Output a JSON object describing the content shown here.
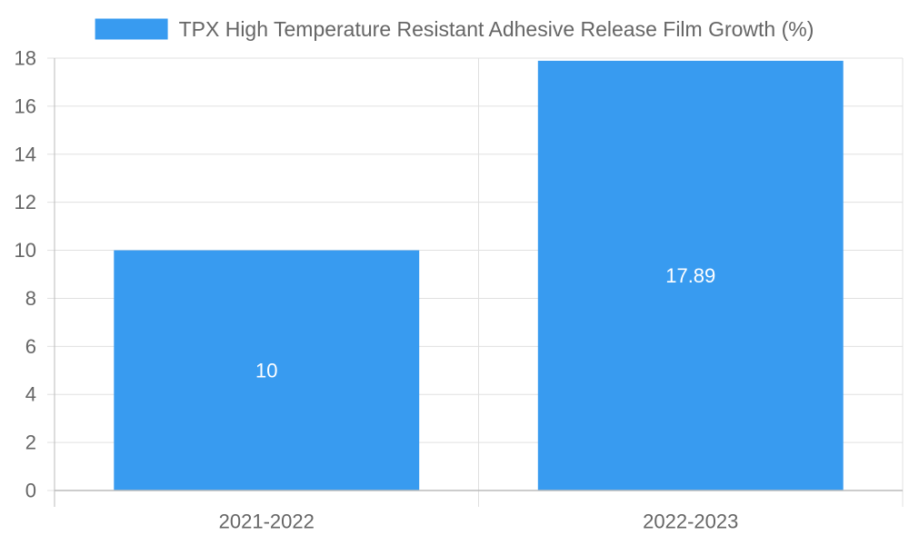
{
  "chart_data": {
    "type": "bar",
    "title": "",
    "xlabel": "",
    "ylabel": "",
    "categories": [
      "2021-2022",
      "2022-2023"
    ],
    "series": [
      {
        "name": "TPX High Temperature Resistant Adhesive Release Film Growth (%)",
        "values": [
          10,
          17.89
        ],
        "data_labels": [
          "10",
          "17.89"
        ],
        "color": "#389bf0"
      }
    ],
    "ylim": [
      0,
      18
    ],
    "y_ticks": [
      "0",
      "2",
      "4",
      "6",
      "8",
      "10",
      "12",
      "14",
      "16",
      "18"
    ],
    "grid": true,
    "legend_position": "top"
  },
  "colors": {
    "bar": "#389bf0",
    "grid": "#e0e0e0",
    "axis": "#bbbbbb",
    "text": "#666666",
    "data_label": "#ffffff"
  }
}
